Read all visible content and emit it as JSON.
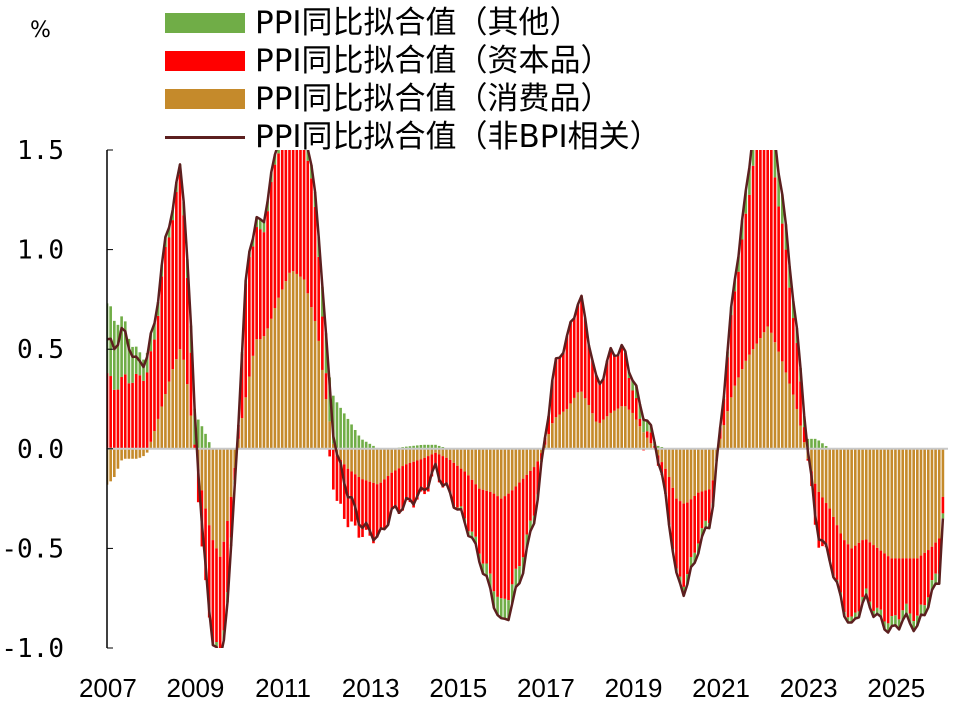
{
  "chart_data": {
    "type": "bar",
    "unit": "%",
    "xlim": [
      2007.0,
      2026.2
    ],
    "ylim": [
      -1.0,
      1.5
    ],
    "yticks": [
      1.5,
      1.0,
      0.5,
      0.0,
      -0.5,
      -1.0
    ],
    "ytick_labels": [
      "1.5",
      "1.0",
      "0.5",
      "0.0",
      "-0.5",
      "-1.0"
    ],
    "xticks": [
      2007,
      2009,
      2011,
      2013,
      2015,
      2017,
      2019,
      2021,
      2023,
      2025
    ],
    "xtick_labels": [
      "2007",
      "2009",
      "2011",
      "2013",
      "2015",
      "2017",
      "2019",
      "2021",
      "2023",
      "2025"
    ],
    "series": [
      {
        "name": "PPI同比拟合值（其他）",
        "kind": "stacked-bar",
        "color": "#70ad47"
      },
      {
        "name": "PPI同比拟合值（资本品）",
        "kind": "stacked-bar",
        "color": "#ff0000"
      },
      {
        "name": "PPI同比拟合值（消费品）",
        "kind": "stacked-bar",
        "color": "#c58a2b"
      },
      {
        "name": "PPI同比拟合值（非BPI相关）",
        "kind": "line",
        "color": "#5c1f1f"
      }
    ],
    "anchors": {
      "x": [
        2007.0,
        2007.15,
        2007.35,
        2007.7,
        2007.9,
        2008.1,
        2008.3,
        2008.5,
        2008.7,
        2008.85,
        2009.0,
        2009.2,
        2009.4,
        2009.6,
        2009.8,
        2010.0,
        2010.2,
        2010.4,
        2010.55,
        2010.7,
        2010.9,
        2011.2,
        2011.5,
        2011.8,
        2012.0,
        2012.2,
        2012.5,
        2012.8,
        2013.2,
        2013.5,
        2013.8,
        2014.2,
        2014.5,
        2014.8,
        2015.2,
        2015.5,
        2015.8,
        2016.0,
        2016.2,
        2016.5,
        2016.8,
        2017.0,
        2017.2,
        2017.5,
        2017.8,
        2018.0,
        2018.2,
        2018.5,
        2018.8,
        2019.0,
        2019.2,
        2019.5,
        2019.8,
        2020.0,
        2020.2,
        2020.5,
        2020.8,
        2021.0,
        2021.3,
        2021.6,
        2021.9,
        2022.1,
        2022.4,
        2022.7,
        2023.0,
        2023.2,
        2023.5,
        2023.8,
        2024.0,
        2024.3,
        2024.6,
        2024.9,
        2025.2,
        2025.5,
        2025.8,
        2026.0,
        2026.1
      ],
      "total": [
        0.55,
        0.5,
        0.6,
        0.42,
        0.45,
        0.65,
        1.0,
        1.22,
        1.45,
        0.9,
        0.2,
        -0.5,
        -0.95,
        -1.08,
        -0.65,
        0.15,
        0.95,
        1.15,
        1.12,
        1.3,
        1.55,
        1.78,
        1.65,
        1.2,
        0.55,
        0.0,
        -0.22,
        -0.38,
        -0.45,
        -0.32,
        -0.28,
        -0.22,
        -0.1,
        -0.22,
        -0.38,
        -0.55,
        -0.75,
        -0.88,
        -0.82,
        -0.6,
        -0.3,
        0.05,
        0.4,
        0.55,
        0.78,
        0.55,
        0.3,
        0.48,
        0.5,
        0.35,
        0.2,
        0.05,
        -0.3,
        -0.65,
        -0.72,
        -0.5,
        -0.35,
        0.1,
        0.8,
        1.3,
        1.9,
        1.8,
        1.3,
        0.7,
        0.0,
        -0.4,
        -0.55,
        -0.8,
        -0.9,
        -0.75,
        -0.85,
        -0.92,
        -0.85,
        -0.9,
        -0.75,
        -0.65,
        -0.28
      ],
      "consumer": [
        -0.18,
        -0.15,
        -0.05,
        -0.05,
        -0.03,
        0.1,
        0.25,
        0.4,
        0.52,
        0.3,
        0.0,
        -0.25,
        -0.45,
        -0.55,
        -0.3,
        0.05,
        0.3,
        0.55,
        0.55,
        0.62,
        0.75,
        0.9,
        0.85,
        0.6,
        0.25,
        -0.02,
        -0.1,
        -0.15,
        -0.18,
        -0.12,
        -0.08,
        -0.05,
        -0.02,
        -0.05,
        -0.12,
        -0.2,
        -0.22,
        -0.25,
        -0.22,
        -0.15,
        -0.08,
        0.02,
        0.15,
        0.2,
        0.3,
        0.22,
        0.12,
        0.18,
        0.22,
        0.18,
        0.1,
        0.0,
        -0.12,
        -0.25,
        -0.28,
        -0.22,
        -0.2,
        0.05,
        0.3,
        0.45,
        0.55,
        0.62,
        0.45,
        0.25,
        -0.05,
        -0.2,
        -0.3,
        -0.45,
        -0.5,
        -0.45,
        -0.5,
        -0.55,
        -0.55,
        -0.55,
        -0.5,
        -0.45,
        -0.2
      ],
      "other": [
        0.35,
        0.35,
        0.3,
        0.12,
        0.1,
        0.08,
        0.05,
        0.05,
        0.05,
        0.1,
        0.18,
        0.1,
        0.0,
        -0.05,
        -0.05,
        0.0,
        0.02,
        0.05,
        0.05,
        0.05,
        0.05,
        0.05,
        0.05,
        0.08,
        0.2,
        0.25,
        0.15,
        0.05,
        0.0,
        0.0,
        0.01,
        0.02,
        0.02,
        0.0,
        -0.02,
        -0.04,
        -0.08,
        -0.1,
        -0.1,
        -0.08,
        -0.03,
        0.0,
        0.0,
        0.0,
        0.0,
        0.0,
        0.0,
        0.0,
        0.0,
        0.05,
        0.08,
        0.02,
        0.0,
        -0.02,
        -0.05,
        -0.05,
        -0.02,
        0.0,
        0.05,
        0.12,
        0.2,
        0.22,
        0.15,
        0.08,
        0.05,
        0.05,
        0.0,
        -0.02,
        -0.03,
        -0.03,
        -0.03,
        -0.05,
        -0.05,
        -0.05,
        -0.05,
        -0.05,
        -0.02
      ]
    }
  },
  "legend": {
    "items": [
      {
        "label": "PPI同比拟合值（其他）",
        "color": "#70ad47",
        "kind": "bar"
      },
      {
        "label": "PPI同比拟合值（资本品）",
        "color": "#ff0000",
        "kind": "bar"
      },
      {
        "label": "PPI同比拟合值（消费品）",
        "color": "#c58a2b",
        "kind": "bar"
      },
      {
        "label": "PPI同比拟合值（非BPI相关）",
        "color": "#5c1f1f",
        "kind": "line"
      }
    ]
  }
}
